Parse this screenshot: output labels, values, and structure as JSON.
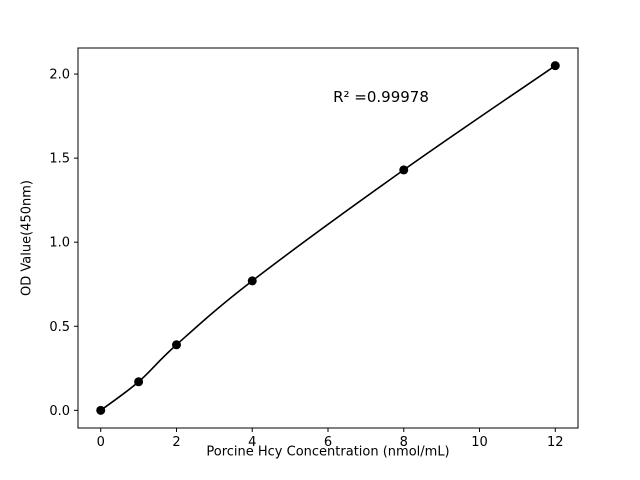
{
  "chart_data": {
    "type": "scatter",
    "title": "",
    "xlabel": "Porcine Hcy Concentration (nmol/mL)",
    "ylabel": "OD Value(450nm)",
    "x": [
      0,
      1,
      2,
      4,
      8,
      12
    ],
    "y": [
      0.0,
      0.17,
      0.39,
      0.77,
      1.43,
      2.05
    ],
    "fit_curve": true,
    "annotation": {
      "text": "R² =0.99978",
      "x": 7.3,
      "y": 1.84
    },
    "xlim": [
      -0.6,
      12.6
    ],
    "ylim": [
      -0.105,
      2.155
    ],
    "xticks": [
      0,
      2,
      4,
      6,
      8,
      10,
      12
    ],
    "xtick_labels": [
      "0",
      "2",
      "4",
      "6",
      "8",
      "10",
      "12"
    ],
    "yticks": [
      0.0,
      0.5,
      1.0,
      1.5,
      2.0
    ],
    "ytick_labels": [
      "0.0",
      "0.5",
      "1.0",
      "1.5",
      "2.0"
    ],
    "grid": false,
    "legend": null,
    "colors": {
      "line": "#000000",
      "marker": "#000000",
      "axis": "#000000",
      "background": "#ffffff"
    }
  }
}
